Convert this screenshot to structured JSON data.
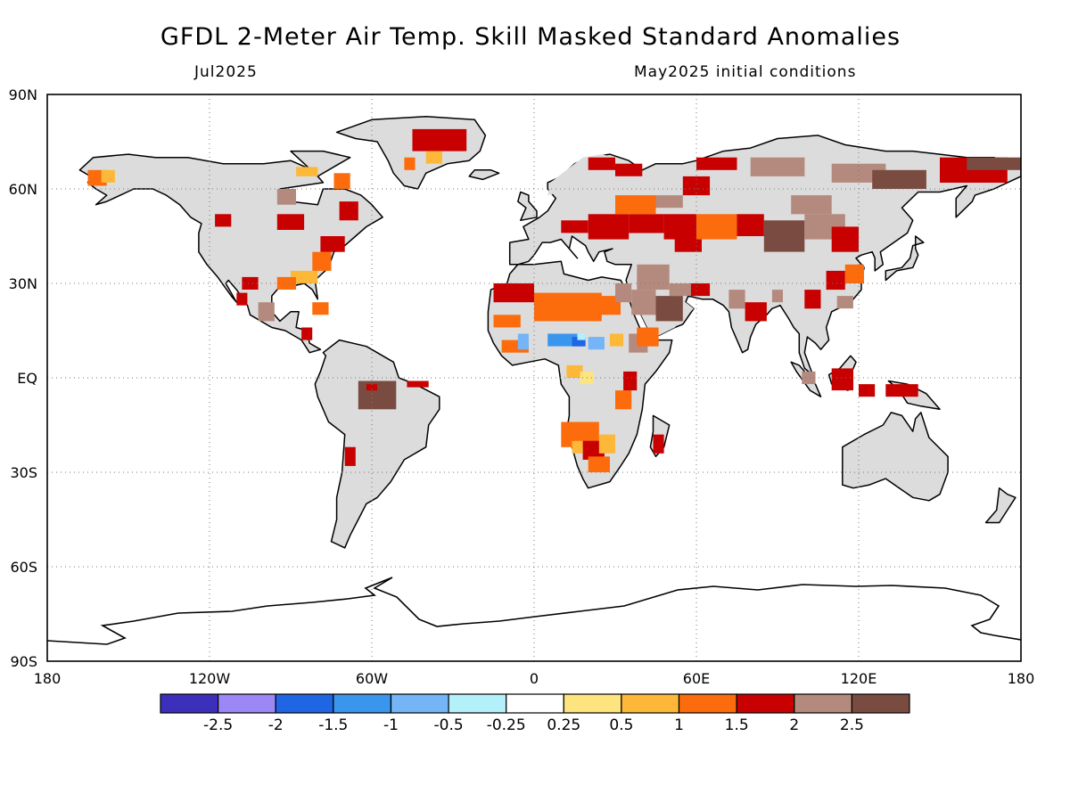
{
  "header": {
    "title": "GFDL 2-Meter Air Temp. Skill Masked Standard Anomalies",
    "valid_month": "Jul2025",
    "init_conditions": "May2025 initial conditions"
  },
  "map": {
    "projection": "equirectangular",
    "lon_range": [
      -180,
      180
    ],
    "lat_range": [
      -90,
      90
    ],
    "grid": "dotted",
    "lat_ticks": [
      {
        "value": 90,
        "label": "90N"
      },
      {
        "value": 60,
        "label": "60N"
      },
      {
        "value": 30,
        "label": "30N"
      },
      {
        "value": 0,
        "label": "EQ"
      },
      {
        "value": -30,
        "label": "30S"
      },
      {
        "value": -60,
        "label": "60S"
      },
      {
        "value": -90,
        "label": "90S"
      }
    ],
    "lon_ticks": [
      {
        "value": -180,
        "label": "180"
      },
      {
        "value": -120,
        "label": "120W"
      },
      {
        "value": -60,
        "label": "60W"
      },
      {
        "value": 0,
        "label": "0"
      },
      {
        "value": 60,
        "label": "60E"
      },
      {
        "value": 120,
        "label": "120E"
      },
      {
        "value": 180,
        "label": "180"
      }
    ],
    "land_color": "#dcdcdc",
    "coast_color": "#000000"
  },
  "colorbar": {
    "bins": [
      {
        "color": "#3c2fbc"
      },
      {
        "color": "#9b87f5"
      },
      {
        "color": "#1f66e5"
      },
      {
        "color": "#3a96ec"
      },
      {
        "color": "#74b4f7"
      },
      {
        "color": "#b4f0fa"
      },
      {
        "color": "#ffffff"
      },
      {
        "color": "#fde47f"
      },
      {
        "color": "#fdb83a"
      },
      {
        "color": "#fc6b0c"
      },
      {
        "color": "#c80000"
      },
      {
        "color": "#b48a7e"
      },
      {
        "color": "#7a4c41"
      }
    ],
    "labels": [
      "-2.5",
      "-2",
      "-1.5",
      "-1",
      "-0.5",
      "-0.25",
      "0.25",
      "0.5",
      "1",
      "1.5",
      "2",
      "2.5"
    ]
  },
  "chart_data": {
    "type": "heatmap",
    "title": "GFDL 2-Meter Air Temp. Skill Masked Standard Anomalies",
    "valid": "Jul2025",
    "initial_conditions": "May2025 initial conditions",
    "legend_thresholds": [
      -2.5,
      -2,
      -1.5,
      -1,
      -0.5,
      -0.25,
      0.25,
      0.5,
      1,
      1.5,
      2,
      2.5
    ],
    "notable_regions": [
      {
        "region": "Amazon basin",
        "lon": [
          -65,
          -52
        ],
        "lat": [
          -8,
          0
        ],
        "category": "2.5"
      },
      {
        "region": "Sahara / North Africa",
        "lon": [
          -5,
          30
        ],
        "lat": [
          15,
          28
        ],
        "category": "1.5"
      },
      {
        "region": "Sahel (West Africa)",
        "lon": [
          -5,
          20
        ],
        "lat": [
          6,
          16
        ],
        "category": "-1"
      },
      {
        "region": "Greenland (northeast)",
        "lon": [
          -42,
          -22
        ],
        "lat": [
          72,
          78
        ],
        "category": "2"
      },
      {
        "region": "Central Asia",
        "lon": [
          45,
          80
        ],
        "lat": [
          38,
          52
        ],
        "category": "2"
      },
      {
        "region": "Mongolia / N China",
        "lon": [
          85,
          120
        ],
        "lat": [
          38,
          55
        ],
        "category": "2.5"
      },
      {
        "region": "Arabian Peninsula",
        "lon": [
          38,
          55
        ],
        "lat": [
          17,
          30
        ],
        "category": "2.5"
      },
      {
        "region": "Borneo",
        "lon": [
          109,
          118
        ],
        "lat": [
          -3,
          3
        ],
        "category": "2"
      },
      {
        "region": "Southern Africa",
        "lon": [
          16,
          30
        ],
        "lat": [
          -28,
          -15
        ],
        "category": "1.5"
      }
    ]
  }
}
